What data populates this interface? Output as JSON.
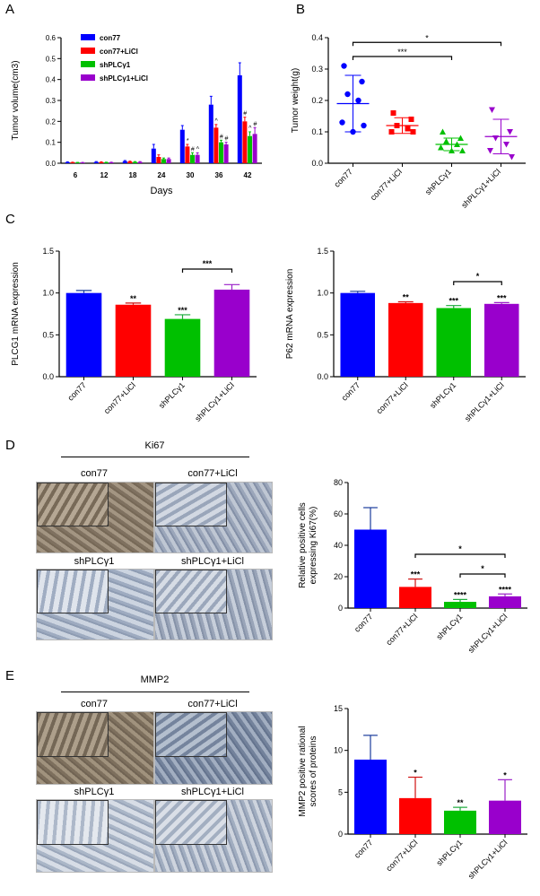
{
  "panel_labels": {
    "A": "A",
    "B": "B",
    "C": "C",
    "D": "D",
    "E": "E"
  },
  "colors": {
    "con77": "#0000ff",
    "con77_licl": "#ff0000",
    "shplc": "#00c000",
    "shplc_licl": "#9900cc",
    "con77_dark": "#1a3c9c",
    "con77_licl_dark": "#d01010",
    "shplc_dark": "#1aaa3a",
    "shplc_licl_dark": "#9a20c8"
  },
  "chart_data": [
    {
      "id": "A",
      "type": "bar",
      "ylabel": "Tumor volume(cm3)",
      "xlabel": "Days",
      "categories": [
        "6",
        "12",
        "18",
        "24",
        "30",
        "36",
        "42"
      ],
      "ylim": [
        0,
        0.6
      ],
      "yticks": [
        "0.0",
        "0.1",
        "0.2",
        "0.3",
        "0.4",
        "0.5",
        "0.6"
      ],
      "legend": [
        "con77",
        "con77+LiCl",
        "shPLCγ1",
        "shPLCγ1+LiCl"
      ],
      "series": [
        {
          "name": "con77",
          "values": [
            0.005,
            0.006,
            0.01,
            0.07,
            0.16,
            0.28,
            0.42
          ],
          "errors": [
            0.002,
            0.002,
            0.003,
            0.02,
            0.02,
            0.04,
            0.06
          ]
        },
        {
          "name": "con77+LiCl",
          "values": [
            0.004,
            0.005,
            0.008,
            0.03,
            0.08,
            0.17,
            0.2
          ],
          "errors": [
            0.001,
            0.002,
            0.002,
            0.01,
            0.01,
            0.015,
            0.02
          ]
        },
        {
          "name": "shPLCγ1",
          "values": [
            0.003,
            0.004,
            0.006,
            0.02,
            0.04,
            0.1,
            0.13
          ],
          "errors": [
            0.001,
            0.001,
            0.002,
            0.005,
            0.01,
            0.01,
            0.02
          ]
        },
        {
          "name": "shPLCγ1+LiCl",
          "values": [
            0.003,
            0.004,
            0.006,
            0.02,
            0.04,
            0.09,
            0.14
          ],
          "errors": [
            0.001,
            0.001,
            0.002,
            0.005,
            0.01,
            0.01,
            0.03
          ]
        }
      ],
      "annotations": [
        {
          "category": "30",
          "series": "con77+LiCl",
          "text": "*"
        },
        {
          "category": "30",
          "series": "shPLCγ1",
          "text": "#"
        },
        {
          "category": "30",
          "series": "shPLCγ1+LiCl",
          "text": "^"
        },
        {
          "category": "36",
          "series": "con77+LiCl",
          "text": "^"
        },
        {
          "category": "36",
          "series": "shPLCγ1",
          "text": "#"
        },
        {
          "category": "36",
          "series": "shPLCγ1+LiCl",
          "text": "#"
        },
        {
          "category": "42",
          "series": "con77+LiCl",
          "text": "#"
        },
        {
          "category": "42",
          "series": "shPLCγ1",
          "text": "^"
        },
        {
          "category": "42",
          "series": "shPLCγ1+LiCl",
          "text": "#"
        }
      ]
    },
    {
      "id": "B",
      "type": "scatter",
      "ylabel": "Tumor weight(g)",
      "categories": [
        "con77",
        "con77+LiCl",
        "shPLCγ1",
        "shPLCγ1+LiCl"
      ],
      "ylim": [
        0,
        0.4
      ],
      "yticks": [
        "0.0",
        "0.1",
        "0.2",
        "0.3",
        "0.4"
      ],
      "points": [
        [
          0.31,
          0.26,
          0.22,
          0.2,
          0.13,
          0.12,
          0.1
        ],
        [
          0.16,
          0.14,
          0.12,
          0.11,
          0.1,
          0.1
        ],
        [
          0.1,
          0.08,
          0.07,
          0.06,
          0.05,
          0.04,
          0.04
        ],
        [
          0.17,
          0.1,
          0.08,
          0.06,
          0.04,
          0.02
        ]
      ],
      "means": [
        0.19,
        0.12,
        0.06,
        0.085
      ],
      "sd": [
        0.09,
        0.025,
        0.02,
        0.055
      ],
      "brackets": [
        {
          "from": 0,
          "to": 2,
          "text": "***"
        },
        {
          "from": 0,
          "to": 3,
          "text": "*"
        }
      ]
    },
    {
      "id": "C1",
      "type": "bar",
      "ylabel": "PLCG1 mRNA expression",
      "categories": [
        "con77",
        "con77+LiCl",
        "shPLCγ1",
        "shPLCγ1+LiCl"
      ],
      "ylim": [
        0,
        1.5
      ],
      "yticks": [
        "0.0",
        "0.5",
        "1.0",
        "1.5"
      ],
      "values": [
        1.0,
        0.86,
        0.69,
        1.04
      ],
      "errors": [
        0.03,
        0.02,
        0.05,
        0.06
      ],
      "stars": [
        "",
        "**",
        "***",
        ""
      ],
      "brackets": [
        {
          "from": 2,
          "to": 3,
          "text": "***"
        }
      ]
    },
    {
      "id": "C2",
      "type": "bar",
      "ylabel": "P62 mRNA expression",
      "categories": [
        "con77",
        "con77+LiCl",
        "shPLCγ1",
        "shPLCγ1+LiCl"
      ],
      "ylim": [
        0,
        1.5
      ],
      "yticks": [
        "0.0",
        "0.5",
        "1.0",
        "1.5"
      ],
      "values": [
        1.0,
        0.88,
        0.82,
        0.87
      ],
      "errors": [
        0.02,
        0.015,
        0.03,
        0.015
      ],
      "stars": [
        "",
        "**",
        "***",
        "***"
      ],
      "brackets": [
        {
          "from": 2,
          "to": 3,
          "text": "*"
        }
      ]
    },
    {
      "id": "D",
      "type": "bar",
      "ylabel": "Relative positive cells expressing Ki67(%)",
      "ylabel_lines": [
        "Relative positive cells",
        "expressing Ki67(%)"
      ],
      "categories": [
        "con77",
        "con77+LiCl",
        "shPLCγ1",
        "shPLCγ1+LiCl"
      ],
      "ylim": [
        0,
        80
      ],
      "yticks": [
        "0",
        "20",
        "40",
        "60",
        "80"
      ],
      "values": [
        50,
        13.5,
        4,
        7.5
      ],
      "errors": [
        14,
        5,
        1.5,
        1.5
      ],
      "stars": [
        "",
        "***",
        "****",
        "****"
      ],
      "brackets": [
        {
          "from": 1,
          "to": 3,
          "text": "*",
          "level": 0
        },
        {
          "from": 2,
          "to": 3,
          "text": "*",
          "level": 1
        }
      ]
    },
    {
      "id": "E",
      "type": "bar",
      "ylabel": "MMP2 positive rational scores of proteins",
      "ylabel_lines": [
        "MMP2 positive rational",
        "scores of proteins"
      ],
      "categories": [
        "con77",
        "con77+LiCl",
        "shPLCγ1",
        "shPLCγ1+LiCl"
      ],
      "ylim": [
        0,
        15
      ],
      "yticks": [
        "0",
        "5",
        "10",
        "15"
      ],
      "values": [
        8.9,
        4.3,
        2.8,
        4.0
      ],
      "errors": [
        2.9,
        2.5,
        0.4,
        2.5
      ],
      "stars": [
        "",
        "*",
        "**",
        "*"
      ]
    }
  ],
  "ihc": {
    "D": {
      "title": "Ki67",
      "labels": [
        "con77",
        "con77+LiCl",
        "shPLCγ1",
        "shPLCγ1+LiCl"
      ]
    },
    "E": {
      "title": "MMP2",
      "labels": [
        "con77",
        "con77+LiCl",
        "shPLCγ1",
        "shPLCγ1+LiCl"
      ]
    }
  }
}
